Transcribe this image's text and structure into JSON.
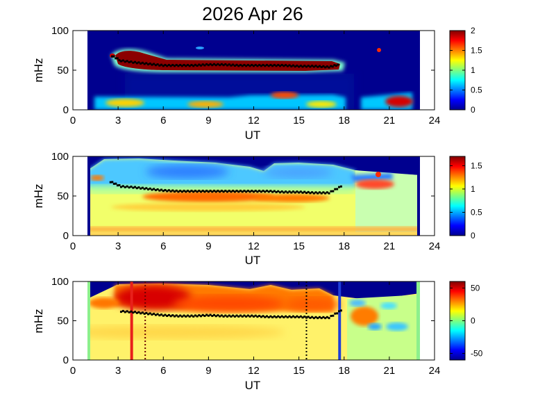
{
  "title": "2026 Apr 26",
  "chart_data": [
    {
      "type": "heatmap",
      "panel": 1,
      "xlabel": "UT",
      "ylabel": "mHz",
      "xlim": [
        0,
        24
      ],
      "ylim": [
        0,
        100
      ],
      "xticks": [
        "0",
        "3",
        "6",
        "9",
        "12",
        "15",
        "18",
        "21",
        "24"
      ],
      "yticks": [
        "0",
        "50",
        "100"
      ],
      "data_extent_ut": [
        1,
        23
      ],
      "colorbar": {
        "range": [
          0,
          2
        ],
        "ticks": [
          "0",
          "0.5",
          "1",
          "1.5",
          "2"
        ]
      },
      "features": [
        {
          "name": "band",
          "ut": [
            3,
            17.7
          ],
          "mhz_center": 56,
          "level": 2
        },
        {
          "name": "low-freq",
          "ut": [
            1.5,
            18
          ],
          "mhz_center": 10,
          "level": 1.2
        },
        {
          "name": "low-freq-late",
          "ut": [
            20.5,
            22.5
          ],
          "mhz_center": 12,
          "level": 1.8
        }
      ],
      "marker_trace": {
        "ut": [
          2.6,
          3.2,
          4,
          5,
          6,
          7,
          8,
          9,
          10,
          11,
          12,
          13,
          14,
          15,
          16,
          17,
          17.6
        ],
        "mhz": [
          68,
          62,
          60,
          58,
          56,
          56,
          56,
          57,
          57,
          56,
          56,
          56,
          56,
          55,
          55,
          54,
          57
        ]
      }
    },
    {
      "type": "heatmap",
      "panel": 2,
      "xlabel": "UT",
      "ylabel": "mHz",
      "xlim": [
        0,
        24
      ],
      "ylim": [
        0,
        100
      ],
      "xticks": [
        "0",
        "3",
        "6",
        "9",
        "12",
        "15",
        "18",
        "21",
        "24"
      ],
      "yticks": [
        "0",
        "50",
        "100"
      ],
      "data_extent_ut": [
        1,
        23
      ],
      "colorbar": {
        "range": [
          0,
          1.7
        ],
        "ticks": [
          "0",
          "0.5",
          "1",
          "1.5"
        ]
      },
      "marker_trace": {
        "ut": [
          2.5,
          3.2,
          4,
          5,
          6,
          7,
          8,
          9,
          10,
          11,
          12,
          13,
          14,
          15,
          16,
          17,
          17.8
        ],
        "mhz": [
          68,
          62,
          61,
          59,
          57,
          56,
          56,
          56,
          56,
          56,
          56,
          56,
          55,
          55,
          54,
          54,
          62
        ]
      }
    },
    {
      "type": "heatmap",
      "panel": 3,
      "xlabel": "UT",
      "ylabel": "mHz",
      "xlim": [
        0,
        24
      ],
      "ylim": [
        0,
        100
      ],
      "xticks": [
        "0",
        "3",
        "6",
        "9",
        "12",
        "15",
        "18",
        "21",
        "24"
      ],
      "yticks": [
        "0",
        "50",
        "100"
      ],
      "data_extent_ut": [
        1,
        23
      ],
      "colorbar": {
        "range": [
          -60,
          60
        ],
        "ticks": [
          "-50",
          "0",
          "50"
        ]
      },
      "vlines": [
        {
          "ut": 3.9,
          "color": "#e8201b",
          "style": "solid"
        },
        {
          "ut": 4.8,
          "color": "#6a0000",
          "style": "dotted"
        },
        {
          "ut": 15.5,
          "color": "#000000",
          "style": "dotted"
        },
        {
          "ut": 17.7,
          "color": "#1f3fd8",
          "style": "solid"
        }
      ],
      "marker_trace": {
        "ut": [
          3.2,
          4,
          5,
          6,
          7,
          8,
          9,
          10,
          11,
          12,
          13,
          14,
          15,
          16,
          17,
          17.8
        ],
        "mhz": [
          62,
          61,
          59,
          57,
          56,
          56,
          57,
          56,
          56,
          56,
          55,
          55,
          55,
          54,
          54,
          63
        ]
      }
    }
  ]
}
